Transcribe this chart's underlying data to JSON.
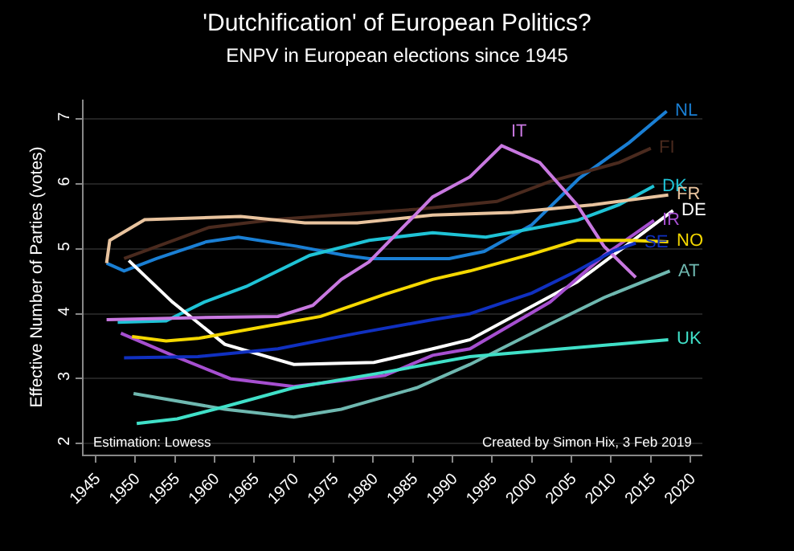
{
  "chart_data": {
    "type": "line",
    "title": "'Dutchification' of European Politics?",
    "subtitle": "ENPV in European elections since 1945",
    "ylabel": "Effective Number of Parties (votes)",
    "xlim": [
      1943.5,
      2021.5
    ],
    "xticks": [
      1945,
      1950,
      1955,
      1960,
      1965,
      1970,
      1975,
      1980,
      1985,
      1990,
      1995,
      2000,
      2005,
      2010,
      2015,
      2020
    ],
    "ylim": [
      1.83,
      7.3
    ],
    "yticks": [
      2,
      3,
      4,
      5,
      6,
      7
    ],
    "grid": "y",
    "legend": false,
    "marker": "none",
    "line_style": "solid",
    "series": [
      {
        "name": "NL",
        "color": "#1a7fd4",
        "x": [
          1946.4,
          1948.6,
          1952.7,
          1959,
          1963,
          1970.4,
          1976.5,
          1979.5,
          1989.6,
          1994,
          2000,
          2006,
          2012.3,
          2017
        ],
        "values": [
          4.78,
          4.66,
          4.85,
          5.11,
          5.18,
          5.04,
          4.9,
          4.85,
          4.85,
          4.96,
          5.37,
          6.09,
          6.64,
          7.12
        ]
      },
      {
        "name": "FI",
        "color": "#4a2a1e",
        "x": [
          1948.6,
          1959.3,
          1967.4,
          1975.4,
          1985.5,
          1995.6,
          2002.3,
          2011,
          2015
        ],
        "values": [
          4.85,
          5.33,
          5.45,
          5.52,
          5.61,
          5.73,
          6.04,
          6.33,
          6.55
        ]
      },
      {
        "name": "DK",
        "color": "#1fc3d6",
        "x": [
          1947.8,
          1953.9,
          1958.7,
          1964,
          1972,
          1979.5,
          1987.5,
          1994.2,
          2005.7,
          2011,
          2015.4
        ],
        "values": [
          3.87,
          3.89,
          4.18,
          4.42,
          4.9,
          5.13,
          5.25,
          5.18,
          5.44,
          5.68,
          5.97
        ]
      },
      {
        "name": "FR",
        "color": "#e8c39e",
        "x": [
          1946.4,
          1946.8,
          1951.2,
          1963.3,
          1971.4,
          1978,
          1987.5,
          1997.6,
          2007.7,
          2017.2
        ],
        "values": [
          4.78,
          5.13,
          5.45,
          5.5,
          5.4,
          5.4,
          5.52,
          5.56,
          5.68,
          5.83
        ]
      },
      {
        "name": "DE",
        "color": "#ffffff",
        "x": [
          1949.2,
          1954.7,
          1961.3,
          1970,
          1980.1,
          1987.5,
          1992.2,
          2005.7,
          2011,
          2017.8
        ],
        "values": [
          4.82,
          4.18,
          3.53,
          3.22,
          3.25,
          3.46,
          3.6,
          4.49,
          4.97,
          5.59
        ]
      },
      {
        "name": "IR",
        "color": "#a64fd0",
        "x": [
          1948.2,
          1954.7,
          1962,
          1970,
          1981.5,
          1987.5,
          1992.2,
          2002.3,
          2009.1,
          2015.4
        ],
        "values": [
          3.7,
          3.36,
          3.0,
          2.88,
          3.05,
          3.36,
          3.46,
          4.18,
          4.9,
          5.44
        ]
      },
      {
        "name": "IT",
        "color": "#c878e0",
        "x": [
          1946.4,
          1957.9,
          1968,
          1972.4,
          1976,
          1979.5,
          1987.5,
          1992.2,
          1996.2,
          2001,
          2005.7,
          2009.1,
          2013.1
        ],
        "values": [
          3.91,
          3.94,
          3.96,
          4.13,
          4.53,
          4.8,
          5.8,
          6.11,
          6.59,
          6.33,
          5.68,
          5.04,
          4.56
        ]
      },
      {
        "name": "NO",
        "color": "#f5d800",
        "x": [
          1949.6,
          1953.9,
          1957.9,
          1964.8,
          1973.4,
          1981.5,
          1987.5,
          1992.2,
          2000,
          2005.7,
          2012.3,
          2017.2
        ],
        "values": [
          3.65,
          3.58,
          3.62,
          3.77,
          3.96,
          4.3,
          4.53,
          4.66,
          4.92,
          5.13,
          5.13,
          5.11
        ]
      },
      {
        "name": "SE",
        "color": "#1030c0",
        "x": [
          1948.6,
          1957.9,
          1968,
          1978,
          1987.5,
          1992.2,
          2000,
          2005.7,
          2010.3,
          2013.1
        ],
        "values": [
          3.32,
          3.34,
          3.46,
          3.7,
          3.91,
          4.0,
          4.32,
          4.66,
          4.97,
          5.09
        ]
      },
      {
        "name": "AT",
        "color": "#6fb8b0",
        "x": [
          1949.8,
          1961.3,
          1970,
          1976,
          1985.5,
          1992.2,
          2002.3,
          2009.1,
          2017.4
        ],
        "values": [
          2.77,
          2.53,
          2.41,
          2.53,
          2.86,
          3.22,
          3.84,
          4.25,
          4.66
        ]
      },
      {
        "name": "UK",
        "color": "#40e0c8",
        "x": [
          1950.2,
          1955.3,
          1961.3,
          1970,
          1981.5,
          1992.2,
          2005.7,
          2017.2
        ],
        "values": [
          2.31,
          2.38,
          2.57,
          2.86,
          3.1,
          3.34,
          3.48,
          3.6
        ]
      }
    ],
    "annotations": [
      "Estimation: Lowess",
      "Created by Simon Hix, 3 Feb 2019"
    ]
  }
}
